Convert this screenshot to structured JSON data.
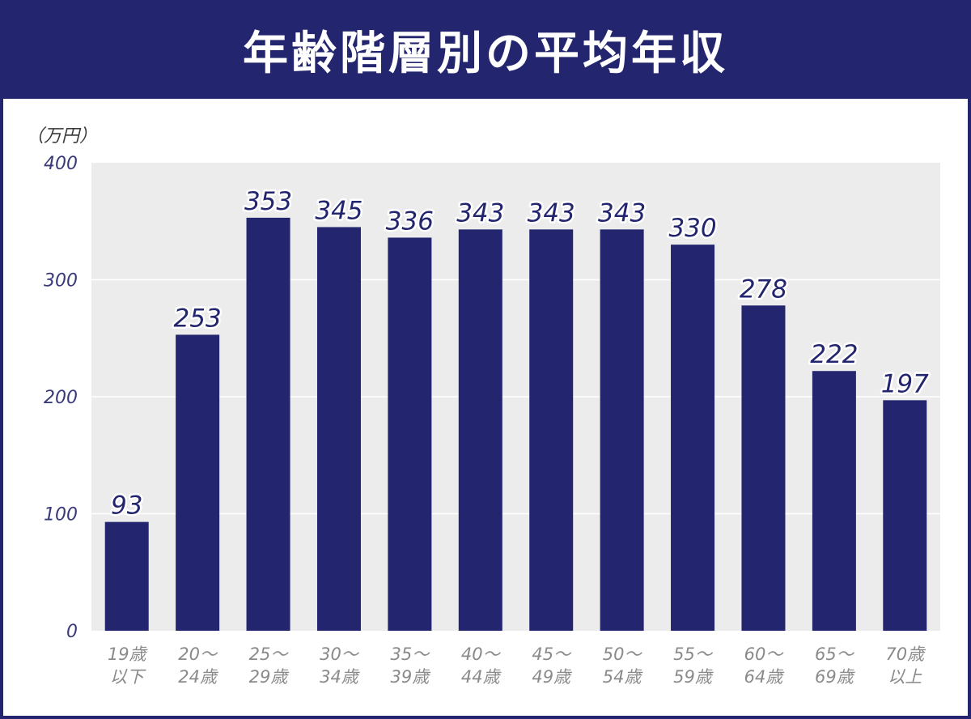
{
  "header": {
    "title": "年齢階層別の平均年収"
  },
  "colors": {
    "brand": "#23266f",
    "plot_background": "#ececec",
    "grid": "#ffffff",
    "value_label": "#23266f",
    "category_label": "#8a8a8a"
  },
  "chart_data": {
    "type": "bar",
    "title": "年齢階層別の平均年収",
    "ylabel": "（万円）",
    "xlabel": "",
    "ylim": [
      0,
      400
    ],
    "yticks": [
      "0",
      "100",
      "200",
      "300",
      "400"
    ],
    "grid": true,
    "categories": [
      [
        "19歳",
        "以下"
      ],
      [
        "20～",
        "24歳"
      ],
      [
        "25～",
        "29歳"
      ],
      [
        "30～",
        "34歳"
      ],
      [
        "35～",
        "39歳"
      ],
      [
        "40～",
        "44歳"
      ],
      [
        "45～",
        "49歳"
      ],
      [
        "50～",
        "54歳"
      ],
      [
        "55～",
        "59歳"
      ],
      [
        "60～",
        "64歳"
      ],
      [
        "65～",
        "69歳"
      ],
      [
        "70歳",
        "以上"
      ]
    ],
    "values": [
      93,
      253,
      353,
      345,
      336,
      343,
      343,
      343,
      330,
      278,
      222,
      197
    ]
  }
}
